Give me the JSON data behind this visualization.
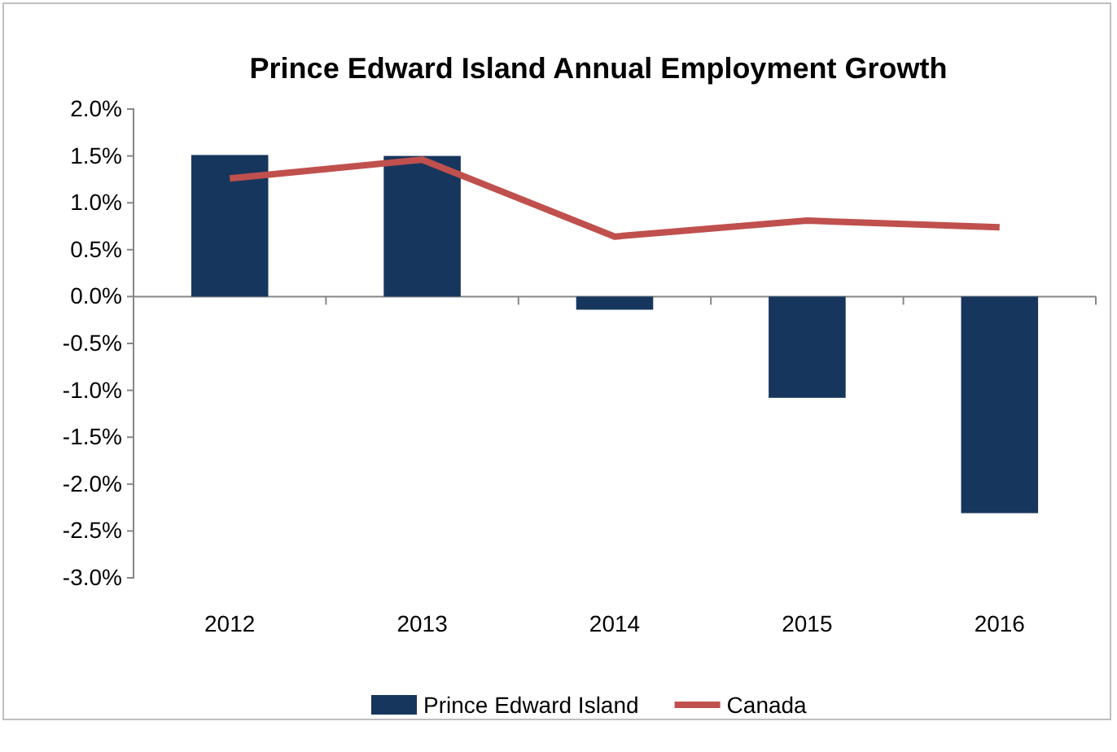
{
  "chart_data": {
    "type": "bar",
    "title": "Prince Edward Island Annual Employment Growth",
    "categories": [
      "2012",
      "2013",
      "2014",
      "2015",
      "2016"
    ],
    "series": [
      {
        "name": "Prince Edward Island",
        "color": "#17365d",
        "values": [
          1.51,
          1.5,
          -0.14,
          -1.08,
          -2.31
        ]
      },
      {
        "name": "Canada",
        "type": "line",
        "color": "#c0504d",
        "values": [
          1.26,
          1.46,
          0.64,
          0.81,
          0.74
        ]
      }
    ],
    "ylim": [
      -3,
      2
    ],
    "yticks": [
      {
        "value": 2,
        "label": "2.0%"
      },
      {
        "value": 1.5,
        "label": "1.5%"
      },
      {
        "value": 1,
        "label": "1.0%"
      },
      {
        "value": 0.5,
        "label": "0.5%"
      },
      {
        "value": 0,
        "label": "0.0%"
      },
      {
        "value": -0.5,
        "label": "-0.5%"
      },
      {
        "value": -1,
        "label": "-1.0%"
      },
      {
        "value": -1.5,
        "label": "-1.5%"
      },
      {
        "value": -2,
        "label": "-2.0%"
      },
      {
        "value": -2.5,
        "label": "-2.5%"
      },
      {
        "value": -3,
        "label": "-3.0%"
      }
    ],
    "legend": "bottom",
    "marker": "none"
  }
}
